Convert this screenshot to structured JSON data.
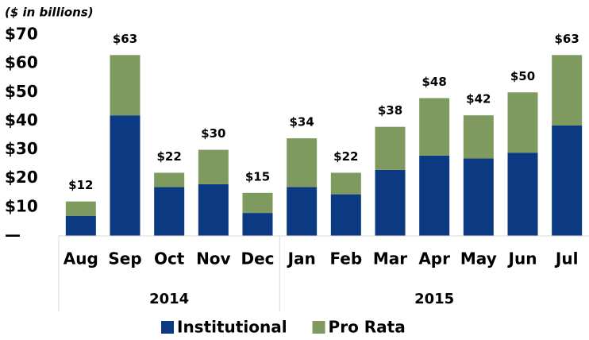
{
  "chart_data": {
    "type": "stacked_bar",
    "subtitle": "($ in billions)",
    "categories": [
      "Aug",
      "Sep",
      "Oct",
      "Nov",
      "Dec",
      "Jan",
      "Feb",
      "Mar",
      "Apr",
      "May",
      "Jun",
      "Jul"
    ],
    "groups": [
      {
        "label": "2014",
        "count": 5
      },
      {
        "label": "2015",
        "count": 7
      }
    ],
    "series": [
      {
        "name": "Institutional",
        "color": "#0b3a82",
        "values": [
          7,
          42,
          17,
          18,
          8,
          17,
          14.5,
          23,
          28,
          27,
          29,
          38.5
        ]
      },
      {
        "name": "Pro Rata",
        "color": "#7f9a5e",
        "values": [
          5,
          21,
          5,
          12,
          7,
          17,
          7.5,
          15,
          20,
          15,
          21,
          24.5
        ]
      }
    ],
    "total_labels": [
      "$12",
      "$63",
      "$22",
      "$30",
      "$15",
      "$34",
      "$22",
      "$38",
      "$48",
      "$42",
      "$50",
      "$63"
    ],
    "ylim": [
      0,
      70
    ],
    "yticks": [
      {
        "value": 0,
        "label": "—"
      },
      {
        "value": 10,
        "label": "$10"
      },
      {
        "value": 20,
        "label": "$20"
      },
      {
        "value": 30,
        "label": "$30"
      },
      {
        "value": 40,
        "label": "$40"
      },
      {
        "value": 50,
        "label": "$50"
      },
      {
        "value": 60,
        "label": "$60"
      },
      {
        "value": 70,
        "label": "$70"
      }
    ],
    "legend": "bottom"
  }
}
